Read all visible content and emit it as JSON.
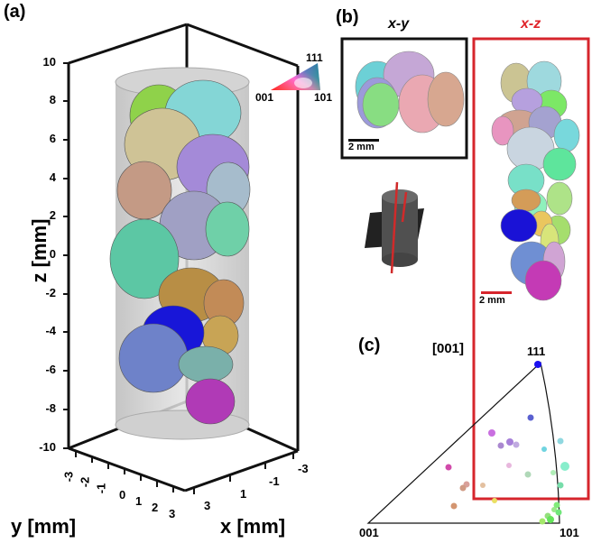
{
  "panels": {
    "a": {
      "label": "(a)",
      "z_axis_title": "z [mm]",
      "y_axis_title": "y [mm]",
      "x_axis_title": "x [mm]",
      "z_ticks": [
        "10",
        "8",
        "6",
        "4",
        "2",
        "0",
        "-2",
        "-4",
        "-6",
        "-8",
        "-10"
      ],
      "y_ticks": [
        "-3",
        "-2",
        "-1",
        "0",
        "1",
        "2",
        "3"
      ],
      "x_ticks": [
        "3",
        "1",
        "-1",
        "-3"
      ],
      "ipf_key": {
        "corner_111": "111",
        "corner_001": "001",
        "corner_101": "101"
      }
    },
    "b": {
      "label": "(b)",
      "xy_title": "x-y",
      "xz_title": "x-z",
      "xy_scale": "2 mm",
      "xz_scale": "2 mm",
      "xy_frame_color": "#000000",
      "xz_frame_color": "#e0242a"
    },
    "c": {
      "label": "(c)",
      "direction": "[001]",
      "corner_111": "111",
      "corner_001": "001",
      "corner_101": "101"
    }
  }
}
